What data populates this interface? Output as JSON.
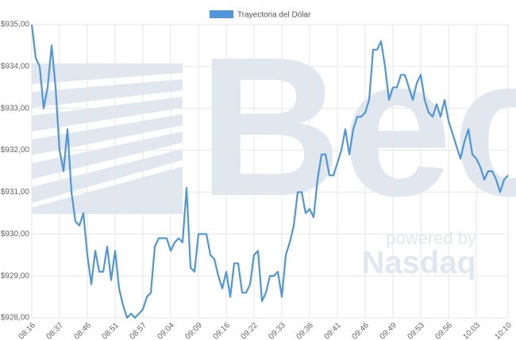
{
  "chart_data": {
    "type": "line",
    "categories": [
      "08:16",
      null,
      null,
      null,
      null,
      null,
      null,
      "08:37",
      null,
      null,
      null,
      null,
      null,
      null,
      "08:46",
      null,
      null,
      null,
      null,
      null,
      null,
      "08:51",
      null,
      null,
      null,
      null,
      null,
      null,
      "08:57",
      null,
      null,
      null,
      null,
      null,
      null,
      "09:04",
      null,
      null,
      null,
      null,
      null,
      null,
      "09:09",
      null,
      null,
      null,
      null,
      null,
      null,
      "09:16",
      null,
      null,
      null,
      null,
      null,
      null,
      "09:22",
      null,
      null,
      null,
      null,
      null,
      null,
      "09:33",
      null,
      null,
      null,
      null,
      null,
      null,
      "09:36",
      null,
      null,
      null,
      null,
      null,
      null,
      "09:41",
      null,
      null,
      null,
      null,
      null,
      null,
      "09:46",
      null,
      null,
      null,
      null,
      null,
      null,
      "09:49",
      null,
      null,
      null,
      null,
      null,
      null,
      "09:53",
      null,
      null,
      null,
      null,
      null,
      null,
      "09:56",
      null,
      null,
      null,
      null,
      null,
      null,
      "10:03",
      null,
      null,
      null,
      null,
      null,
      null,
      null,
      "10:10"
    ],
    "series": [
      {
        "name": "Trayectoria del Dólar",
        "color": "#4f96dc",
        "values": [
          935.0,
          934.2,
          934.0,
          933.0,
          933.5,
          934.5,
          933.5,
          932.0,
          931.5,
          932.5,
          931.0,
          930.3,
          930.2,
          930.5,
          929.5,
          928.8,
          929.6,
          929.1,
          929.1,
          929.7,
          928.9,
          929.6,
          928.7,
          928.3,
          928.0,
          928.1,
          928.0,
          928.1,
          928.2,
          928.5,
          928.6,
          929.7,
          929.9,
          929.9,
          929.9,
          929.6,
          929.8,
          929.9,
          929.8,
          931.1,
          929.2,
          929.1,
          930.0,
          930.0,
          930.0,
          929.5,
          929.4,
          929.0,
          928.7,
          929.1,
          928.5,
          929.3,
          929.3,
          928.6,
          928.6,
          928.8,
          929.5,
          929.6,
          928.4,
          928.6,
          929.0,
          929.0,
          929.1,
          928.5,
          929.5,
          929.8,
          930.2,
          931.0,
          931.0,
          930.5,
          930.6,
          930.4,
          931.3,
          931.9,
          931.9,
          931.4,
          931.4,
          931.7,
          932.0,
          932.5,
          931.9,
          932.5,
          932.8,
          932.8,
          932.9,
          933.2,
          934.4,
          934.4,
          934.6,
          934.0,
          933.2,
          933.5,
          933.5,
          933.8,
          933.8,
          933.5,
          933.2,
          933.6,
          933.8,
          933.2,
          932.9,
          932.8,
          933.1,
          932.8,
          933.2,
          932.7,
          932.4,
          932.1,
          931.8,
          932.2,
          932.5,
          931.9,
          931.8,
          931.6,
          931.3,
          931.5,
          931.5,
          931.3,
          931.0,
          931.3,
          931.4
        ]
      }
    ],
    "ylim": [
      928,
      935
    ],
    "yticks": [
      {
        "value": 928,
        "label": "$928,00"
      },
      {
        "value": 929,
        "label": "$929,00"
      },
      {
        "value": 930,
        "label": "$930,00"
      },
      {
        "value": 931,
        "label": "$931,00"
      },
      {
        "value": 932,
        "label": "$932,00"
      },
      {
        "value": 933,
        "label": "$933,00"
      },
      {
        "value": 934,
        "label": "$934,00"
      },
      {
        "value": 935,
        "label": "$935,00"
      }
    ],
    "grid": true,
    "legend": "top"
  },
  "watermark": {
    "logo": "Bec",
    "tagline": "powered by",
    "brand": "Nasdaq"
  }
}
